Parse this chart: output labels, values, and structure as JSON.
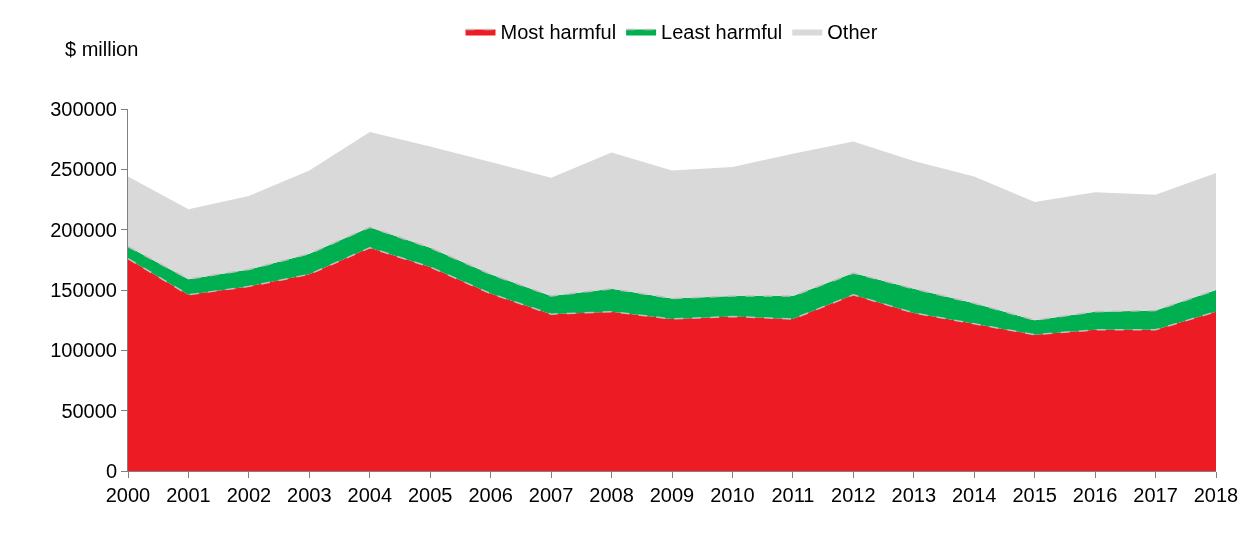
{
  "chart_data": {
    "type": "area",
    "stacked": true,
    "ylabel": "$ million",
    "categories": [
      "2000",
      "2001",
      "2002",
      "2003",
      "2004",
      "2005",
      "2006",
      "2007",
      "2008",
      "2009",
      "2010",
      "2011",
      "2012",
      "2013",
      "2014",
      "2015",
      "2016",
      "2017",
      "2018"
    ],
    "series": [
      {
        "name": "Most harmful",
        "color": "#ed1c24",
        "line_style": "dashed",
        "values": [
          176000,
          146000,
          153000,
          163000,
          185000,
          169000,
          147000,
          130000,
          132000,
          126000,
          128000,
          126000,
          146000,
          131000,
          122000,
          113000,
          117000,
          117000,
          132000
        ]
      },
      {
        "name": "Least harmful",
        "color": "#00b050",
        "line_style": "dashed",
        "values": [
          10000,
          13000,
          14000,
          17000,
          17000,
          16000,
          16000,
          15000,
          19000,
          17000,
          17000,
          19000,
          18000,
          20000,
          17000,
          12000,
          15000,
          16000,
          18000
        ]
      },
      {
        "name": "Other",
        "color": "#d9d9d9",
        "values": [
          58000,
          58000,
          61000,
          69000,
          79000,
          84000,
          93000,
          98000,
          113000,
          106000,
          107000,
          118000,
          109000,
          106000,
          105000,
          98000,
          99000,
          96000,
          97000
        ]
      }
    ],
    "ylim": [
      0,
      300000
    ],
    "yticks": [
      0,
      50000,
      100000,
      150000,
      200000,
      250000,
      300000
    ],
    "grid": false,
    "legend": "top"
  }
}
